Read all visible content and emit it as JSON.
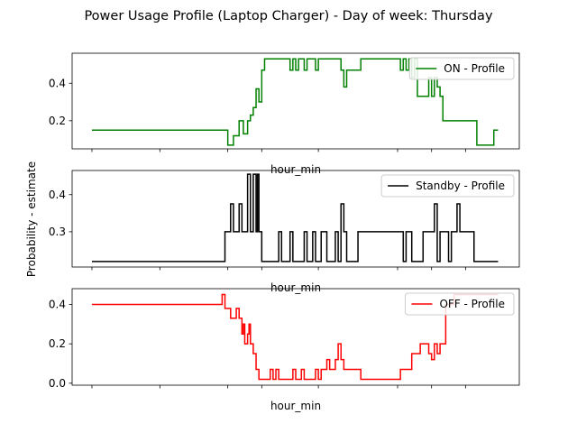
{
  "chart_data": {
    "title": "Power Usage Profile (Laptop Charger) - Day of week: Thursday",
    "ylabel": "Probability - estimate",
    "panels": [
      {
        "type": "line",
        "series_name": "ON - Profile",
        "color": "#008000",
        "xlabel": "hour_min",
        "ylim": [
          0.05,
          0.56
        ],
        "yticks": [
          0.2,
          0.4
        ],
        "x": [
          0,
          47,
          48,
          49,
          50,
          51,
          52,
          53,
          53.5,
          54,
          55,
          55.5,
          56,
          57,
          58,
          59,
          60,
          61,
          62,
          63,
          64,
          65,
          68,
          69,
          70,
          71,
          72,
          73,
          74,
          75,
          76,
          77,
          78,
          79,
          80,
          81,
          82,
          83,
          88,
          89,
          90,
          95,
          108,
          109,
          110,
          111,
          112,
          113,
          114,
          115,
          116,
          117,
          118,
          119,
          120,
          121,
          122,
          123,
          124,
          125,
          135,
          136,
          137,
          138,
          142,
          143,
          143.5
        ],
        "values": [
          0.15,
          0.15,
          0.07,
          0.07,
          0.12,
          0.12,
          0.2,
          0.2,
          0.13,
          0.13,
          0.2,
          0.2,
          0.23,
          0.27,
          0.37,
          0.3,
          0.47,
          0.53,
          0.53,
          0.53,
          0.53,
          0.53,
          0.53,
          0.53,
          0.47,
          0.53,
          0.47,
          0.53,
          0.53,
          0.47,
          0.53,
          0.53,
          0.53,
          0.47,
          0.53,
          0.53,
          0.53,
          0.53,
          0.47,
          0.38,
          0.47,
          0.53,
          0.53,
          0.47,
          0.53,
          0.47,
          0.53,
          0.43,
          0.53,
          0.33,
          0.33,
          0.33,
          0.33,
          0.43,
          0.33,
          0.43,
          0.38,
          0.33,
          0.2,
          0.2,
          0.2,
          0.07,
          0.07,
          0.07,
          0.15,
          0.15,
          0.15
        ]
      },
      {
        "type": "line",
        "series_name": "Standby - Profile",
        "color": "#000000",
        "xlabel": "hour_min",
        "ylim": [
          0.205,
          0.465
        ],
        "yticks": [
          0.3,
          0.4
        ],
        "x": [
          0,
          46,
          47,
          48,
          49,
          50,
          51,
          52,
          53,
          54,
          55,
          56,
          57,
          58,
          58.5,
          59,
          60,
          61,
          62,
          64,
          65,
          66,
          67,
          70,
          71,
          72,
          74,
          75,
          76,
          78,
          79,
          80,
          81,
          82,
          83,
          84,
          86,
          87,
          88,
          89,
          90,
          94,
          95,
          110,
          111,
          112,
          113,
          116,
          117,
          118,
          119,
          120,
          121,
          122,
          123,
          125,
          126,
          127,
          128,
          129,
          130,
          134,
          135,
          143.5
        ],
        "values": [
          0.22,
          0.22,
          0.3,
          0.3,
          0.375,
          0.3,
          0.3,
          0.375,
          0.3,
          0.3,
          0.455,
          0.3,
          0.455,
          0.3,
          0.455,
          0.3,
          0.22,
          0.22,
          0.22,
          0.22,
          0.22,
          0.3,
          0.22,
          0.3,
          0.22,
          0.22,
          0.22,
          0.3,
          0.22,
          0.3,
          0.22,
          0.22,
          0.3,
          0.3,
          0.22,
          0.22,
          0.3,
          0.22,
          0.375,
          0.3,
          0.22,
          0.3,
          0.3,
          0.22,
          0.3,
          0.3,
          0.22,
          0.22,
          0.3,
          0.3,
          0.3,
          0.3,
          0.375,
          0.22,
          0.3,
          0.3,
          0.22,
          0.3,
          0.3,
          0.375,
          0.3,
          0.3,
          0.22,
          0.22
        ]
      },
      {
        "type": "line",
        "series_name": "OFF - Profile",
        "color": "#ff0000",
        "xlabel": "hour_min",
        "ylim": [
          -0.01,
          0.48
        ],
        "yticks": [
          0.0,
          0.2,
          0.4
        ],
        "x": [
          0,
          45,
          46,
          47,
          48,
          49,
          50,
          51,
          52,
          53,
          53.5,
          54,
          55,
          55.5,
          56,
          57,
          58,
          59,
          60,
          61,
          62,
          63,
          64,
          65,
          66,
          67,
          70,
          71,
          72,
          74,
          75,
          76,
          77,
          78,
          79,
          80,
          81,
          82,
          83,
          84,
          86,
          87,
          88,
          89,
          90,
          95,
          108,
          109,
          110,
          111,
          112,
          113,
          114,
          115,
          116,
          117,
          118,
          119,
          120,
          121,
          122,
          123,
          124,
          125,
          128,
          129,
          130,
          143.5
        ],
        "values": [
          0.4,
          0.4,
          0.45,
          0.38,
          0.38,
          0.33,
          0.33,
          0.38,
          0.33,
          0.25,
          0.3,
          0.2,
          0.25,
          0.3,
          0.2,
          0.15,
          0.07,
          0.02,
          0.02,
          0.02,
          0.02,
          0.07,
          0.02,
          0.07,
          0.02,
          0.02,
          0.02,
          0.07,
          0.02,
          0.07,
          0.02,
          0.02,
          0.02,
          0.02,
          0.07,
          0.02,
          0.07,
          0.07,
          0.12,
          0.07,
          0.12,
          0.2,
          0.12,
          0.07,
          0.07,
          0.02,
          0.02,
          0.07,
          0.07,
          0.07,
          0.07,
          0.15,
          0.15,
          0.15,
          0.2,
          0.2,
          0.2,
          0.15,
          0.12,
          0.2,
          0.15,
          0.2,
          0.2,
          0.4,
          0.45,
          0.45,
          0.45,
          0.45
        ]
      }
    ],
    "x_range": [
      -7,
      151
    ],
    "xtick_positions": [
      0,
      24,
      48,
      60,
      80,
      108,
      120,
      132
    ]
  }
}
